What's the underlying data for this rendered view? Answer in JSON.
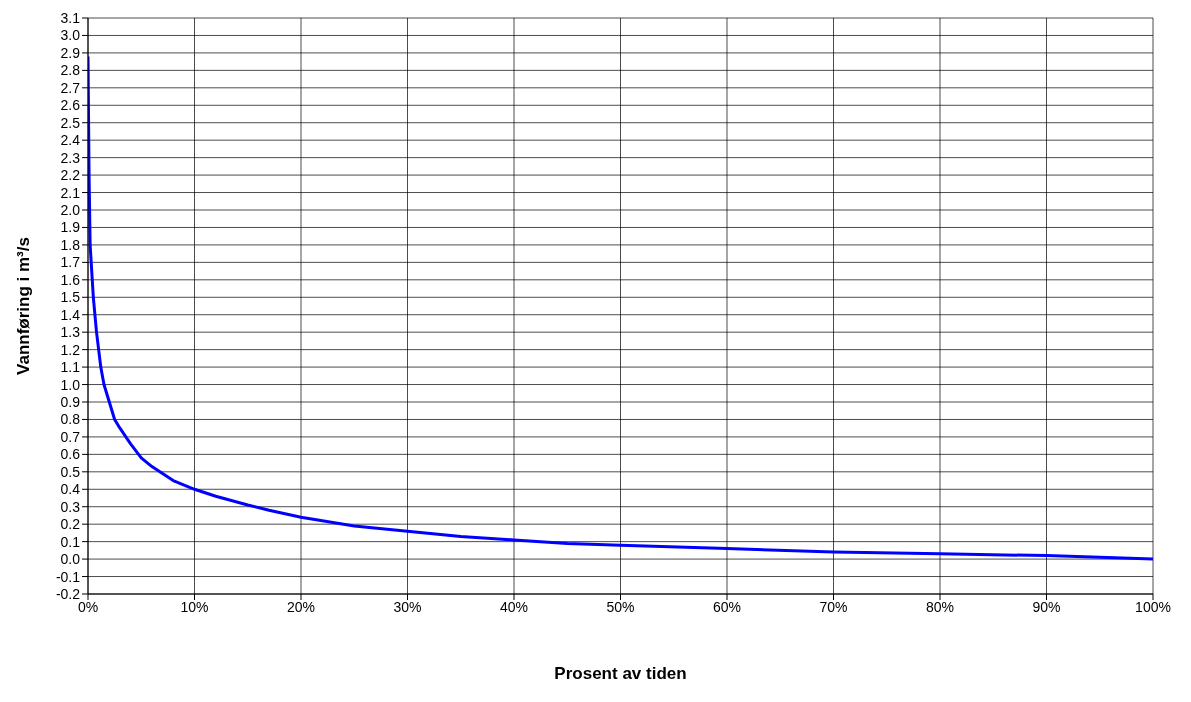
{
  "chart_data": {
    "type": "line",
    "xlabel": "Prosent av tiden",
    "ylabel": "Vannføring i m³/s",
    "x": [
      0,
      0.1,
      0.2,
      0.3,
      0.5,
      0.8,
      1.2,
      1.5,
      2,
      2.5,
      3,
      4,
      5,
      6,
      7,
      8,
      10,
      12,
      15,
      17,
      20,
      23,
      25,
      30,
      35,
      40,
      45,
      50,
      60,
      70,
      80,
      90,
      100
    ],
    "series": [
      {
        "color": "#0000ff",
        "values": [
          2.88,
          2.2,
          1.8,
          1.7,
          1.5,
          1.3,
          1.1,
          1.0,
          0.9,
          0.8,
          0.75,
          0.66,
          0.58,
          0.53,
          0.49,
          0.45,
          0.4,
          0.36,
          0.31,
          0.28,
          0.24,
          0.21,
          0.19,
          0.16,
          0.13,
          0.11,
          0.09,
          0.08,
          0.06,
          0.04,
          0.03,
          0.02,
          0.0
        ]
      }
    ],
    "xlim": [
      0,
      100
    ],
    "xticks": [
      {
        "value": 0,
        "label": "0%"
      },
      {
        "value": 10,
        "label": "10%"
      },
      {
        "value": 20,
        "label": "20%"
      },
      {
        "value": 30,
        "label": "30%"
      },
      {
        "value": 40,
        "label": "40%"
      },
      {
        "value": 50,
        "label": "50%"
      },
      {
        "value": 60,
        "label": "60%"
      },
      {
        "value": 70,
        "label": "70%"
      },
      {
        "value": 80,
        "label": "80%"
      },
      {
        "value": 90,
        "label": "90%"
      },
      {
        "value": 100,
        "label": "100%"
      }
    ],
    "ylim": [
      -0.2,
      3.1
    ],
    "yticks": [
      -0.2,
      -0.1,
      {
        "value": 0,
        "label": "0.0"
      },
      0.1,
      0.2,
      0.3,
      0.4,
      0.5,
      0.6,
      0.7,
      0.8,
      0.9,
      {
        "value": 1,
        "label": "1.0"
      },
      1.1,
      1.2,
      1.3,
      1.4,
      1.5,
      1.6,
      1.7,
      1.8,
      1.9,
      {
        "value": 2,
        "label": "2.0"
      },
      2.1,
      2.2,
      2.3,
      2.4,
      2.5,
      2.6,
      2.7,
      2.8,
      2.9,
      {
        "value": 3,
        "label": "3.0"
      },
      3.1
    ],
    "grid": true,
    "legend": false,
    "marker": "none",
    "line_style": "solid"
  }
}
